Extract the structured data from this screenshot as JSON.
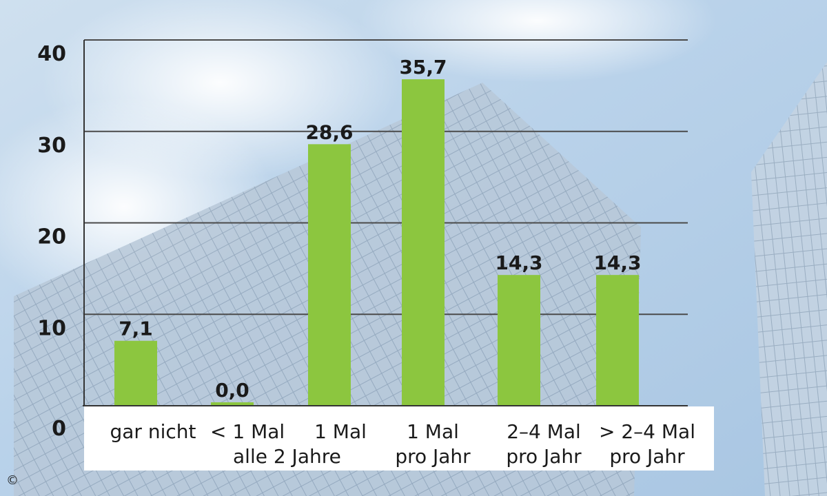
{
  "chart_data": {
    "type": "bar",
    "categories": [
      [
        "gar nicht"
      ],
      [
        "< 1 Mal",
        "alle 2 Jahre"
      ],
      [
        "1 Mal"
      ],
      [
        "1 Mal",
        "pro Jahr"
      ],
      [
        "2–4 Mal",
        "pro Jahr"
      ],
      [
        "> 2–4 Mal",
        "pro Jahr"
      ]
    ],
    "values": [
      7.1,
      0.0,
      28.6,
      35.7,
      14.3,
      14.3
    ],
    "value_labels": [
      "7,1",
      "0,0",
      "28,6",
      "35,7",
      "14,3",
      "14,3"
    ],
    "y_ticks": [
      0,
      10,
      20,
      30,
      40
    ],
    "y_tick_labels": [
      "0",
      "10",
      "20",
      "30",
      "40"
    ],
    "ylim": [
      0,
      40
    ],
    "grid": true,
    "bar_color": "#8cc63f",
    "title": "",
    "xlabel": "",
    "ylabel": ""
  },
  "copyright_symbol": "©"
}
